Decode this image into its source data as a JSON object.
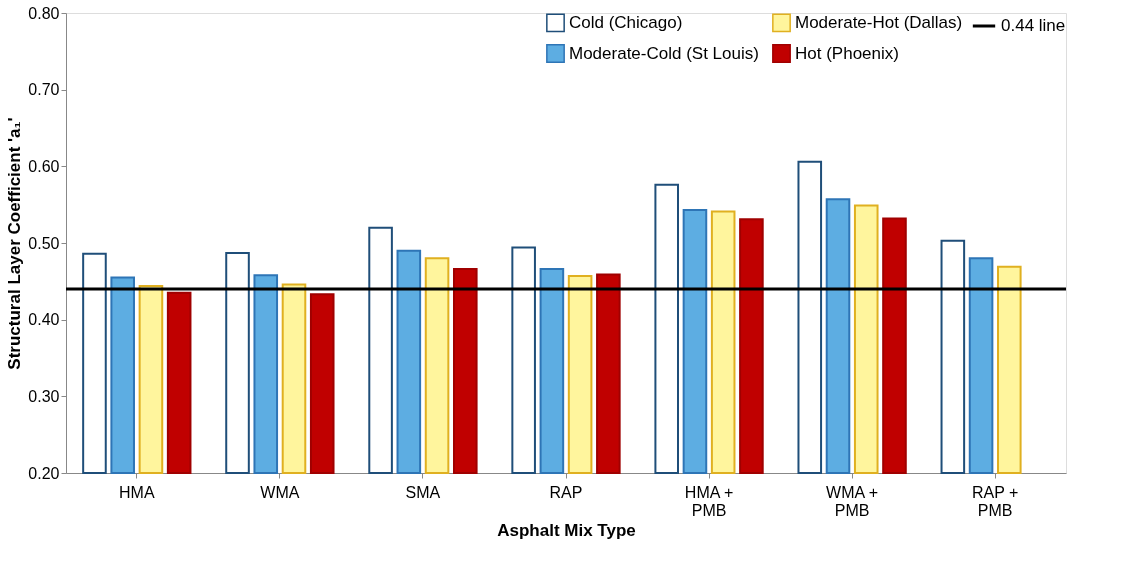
{
  "chart_data": {
    "type": "bar",
    "xlabel": "Asphalt Mix Type",
    "ylabel": "Structural Layer Coefficient 'a₁'",
    "categories": [
      "HMA",
      "WMA",
      "SMA",
      "RAP",
      "HMA + PMB",
      "WMA + PMB",
      "RAP + PMB"
    ],
    "series": [
      {
        "name": "Cold (Chicago)",
        "color": "#ffffff",
        "values": [
          0.486,
          0.487,
          0.52,
          0.494,
          0.576,
          0.606,
          0.503
        ]
      },
      {
        "name": "Moderate-Cold (St Louis)",
        "color": "#5dade2",
        "values": [
          0.455,
          0.458,
          0.49,
          0.466,
          0.543,
          0.557,
          0.48
        ]
      },
      {
        "name": "Moderate-Hot (Dallas)",
        "color": "#fff59d",
        "values": [
          0.444,
          0.446,
          0.48,
          0.457,
          0.541,
          0.549,
          0.469
        ]
      },
      {
        "name": "Hot (Phoenix)",
        "color": "#c00000",
        "values": [
          0.435,
          0.433,
          0.466,
          0.459,
          0.531,
          0.532,
          null
        ]
      }
    ],
    "ylim": [
      0.2,
      0.8
    ],
    "yticks": [
      {
        "value": 0.2,
        "label": "0.20"
      },
      {
        "value": 0.3,
        "label": "0.30"
      },
      {
        "value": 0.4,
        "label": "0.40"
      },
      {
        "value": 0.5,
        "label": "0.50"
      },
      {
        "value": 0.6,
        "label": "0.60"
      },
      {
        "value": 0.7,
        "label": "0.70"
      },
      {
        "value": 0.8,
        "label": "0.80"
      }
    ],
    "ref_lines": [
      {
        "axis": "y",
        "value": 0.44,
        "label": "0.44 line",
        "color": "#000000"
      }
    ],
    "grid": false,
    "legend": "top right"
  }
}
